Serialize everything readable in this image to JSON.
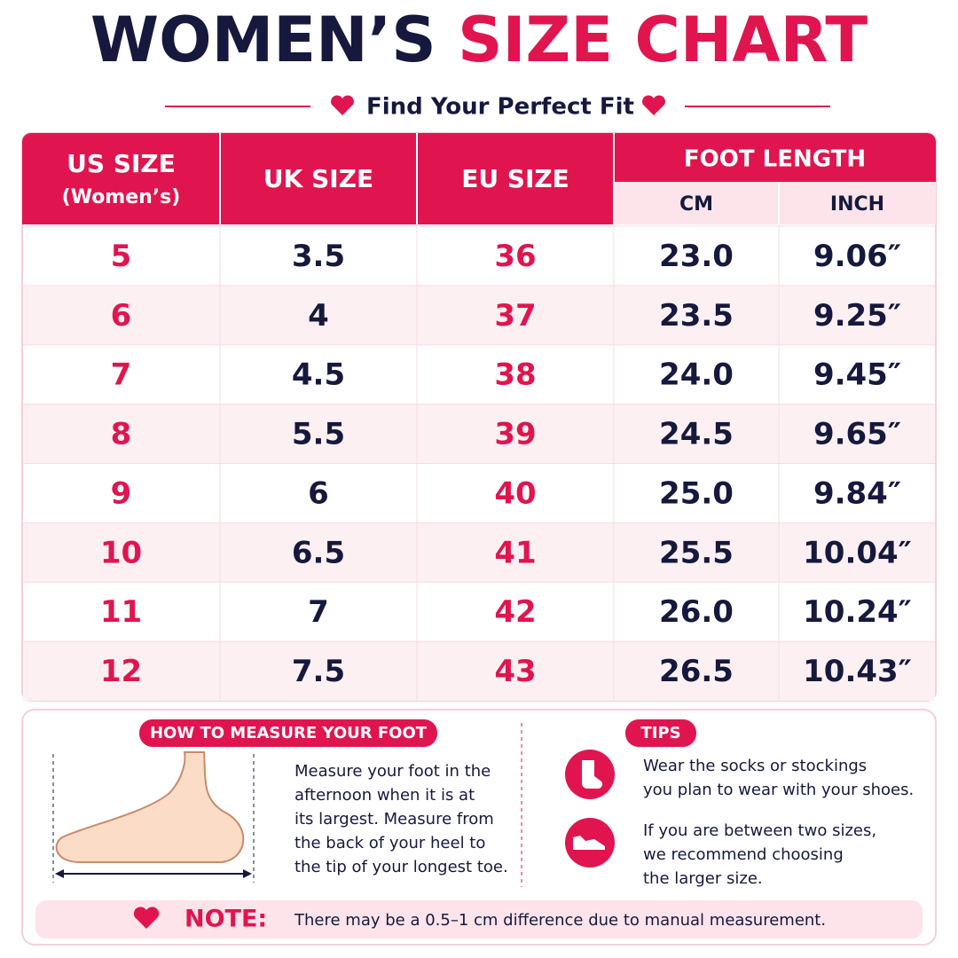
{
  "header": {
    "title_dark": "WOMEN’S",
    "title_pink": "SIZE CHART",
    "subtitle": "Find Your Perfect Fit"
  },
  "table": {
    "columns": [
      "US SIZE",
      "UK SIZE",
      "EU SIZE",
      "FOOT LENGTH"
    ],
    "us_note": "(Women’s)",
    "subcolumns": [
      "CM",
      "INCH"
    ],
    "rows": [
      [
        "5",
        "3.5",
        "36",
        "23.0",
        "9.06″"
      ],
      [
        "6",
        "4",
        "37",
        "23.5",
        "9.25″"
      ],
      [
        "7",
        "4.5",
        "38",
        "24.0",
        "9.45″"
      ],
      [
        "8",
        "5.5",
        "39",
        "24.5",
        "9.65″"
      ],
      [
        "9",
        "6",
        "40",
        "25.0",
        "9.84″"
      ],
      [
        "10",
        "6.5",
        "41",
        "25.5",
        "10.04″"
      ],
      [
        "11",
        "7",
        "42",
        "26.0",
        "10.24″"
      ],
      [
        "12",
        "7.5",
        "43",
        "26.5",
        "10.43″"
      ]
    ]
  },
  "measure": {
    "label": "HOW TO MEASURE YOUR FOOT",
    "lines": [
      "Measure your foot in the",
      "afternoon when it is at",
      "its largest. Measure from",
      "the back of your heel to",
      "the tip of your longest toe."
    ]
  },
  "tips": {
    "label": "TIPS",
    "items": [
      [
        "Wear the socks or stockings",
        "you plan to wear with your shoes."
      ],
      [
        "If you are between two sizes,",
        "we recommend choosing",
        "the larger size."
      ]
    ]
  },
  "note": {
    "label": "NOTE:",
    "text": "There may be a 0.5–1 cm difference due to manual measurement."
  }
}
